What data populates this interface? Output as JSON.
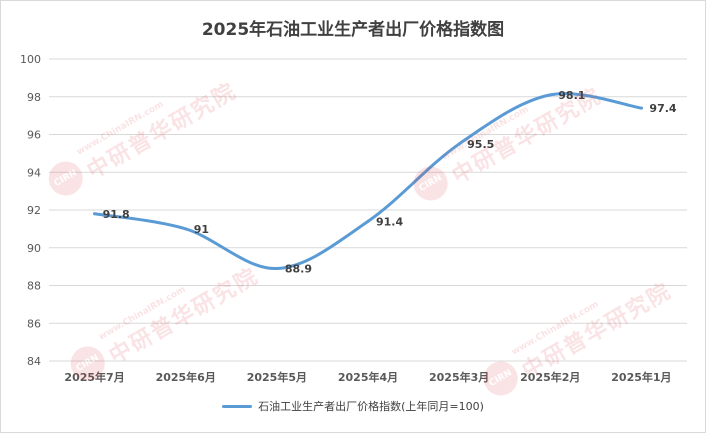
{
  "chart_data": {
    "type": "line",
    "title": "2025年石油工业生产者出厂价格指数图",
    "categories": [
      "2025年7月",
      "2025年6月",
      "2025年5月",
      "2025年4月",
      "2025年3月",
      "2025年2月",
      "2025年1月"
    ],
    "series": [
      {
        "name": "石油工业生产者出厂价格指数(上年同月=100)",
        "values": [
          91.8,
          91,
          88.9,
          91.4,
          95.5,
          98.1,
          97.4
        ],
        "color": "#5b9bd5"
      }
    ],
    "data_labels": [
      "91.8",
      "91",
      "88.9",
      "91.4",
      "95.5",
      "98.1",
      "97.4"
    ],
    "ylim": [
      84,
      100
    ],
    "yticks": [
      84,
      86,
      88,
      90,
      92,
      94,
      96,
      98,
      100
    ],
    "xlabel": "",
    "ylabel": "",
    "grid": true,
    "legend_position": "bottom",
    "gridline_color": "#d9d9d9",
    "axis_text_color": "#595959"
  },
  "watermark": {
    "logo_text": "CIRN",
    "url": "www.ChinaIRN.com",
    "name": "中研普华研究院"
  }
}
